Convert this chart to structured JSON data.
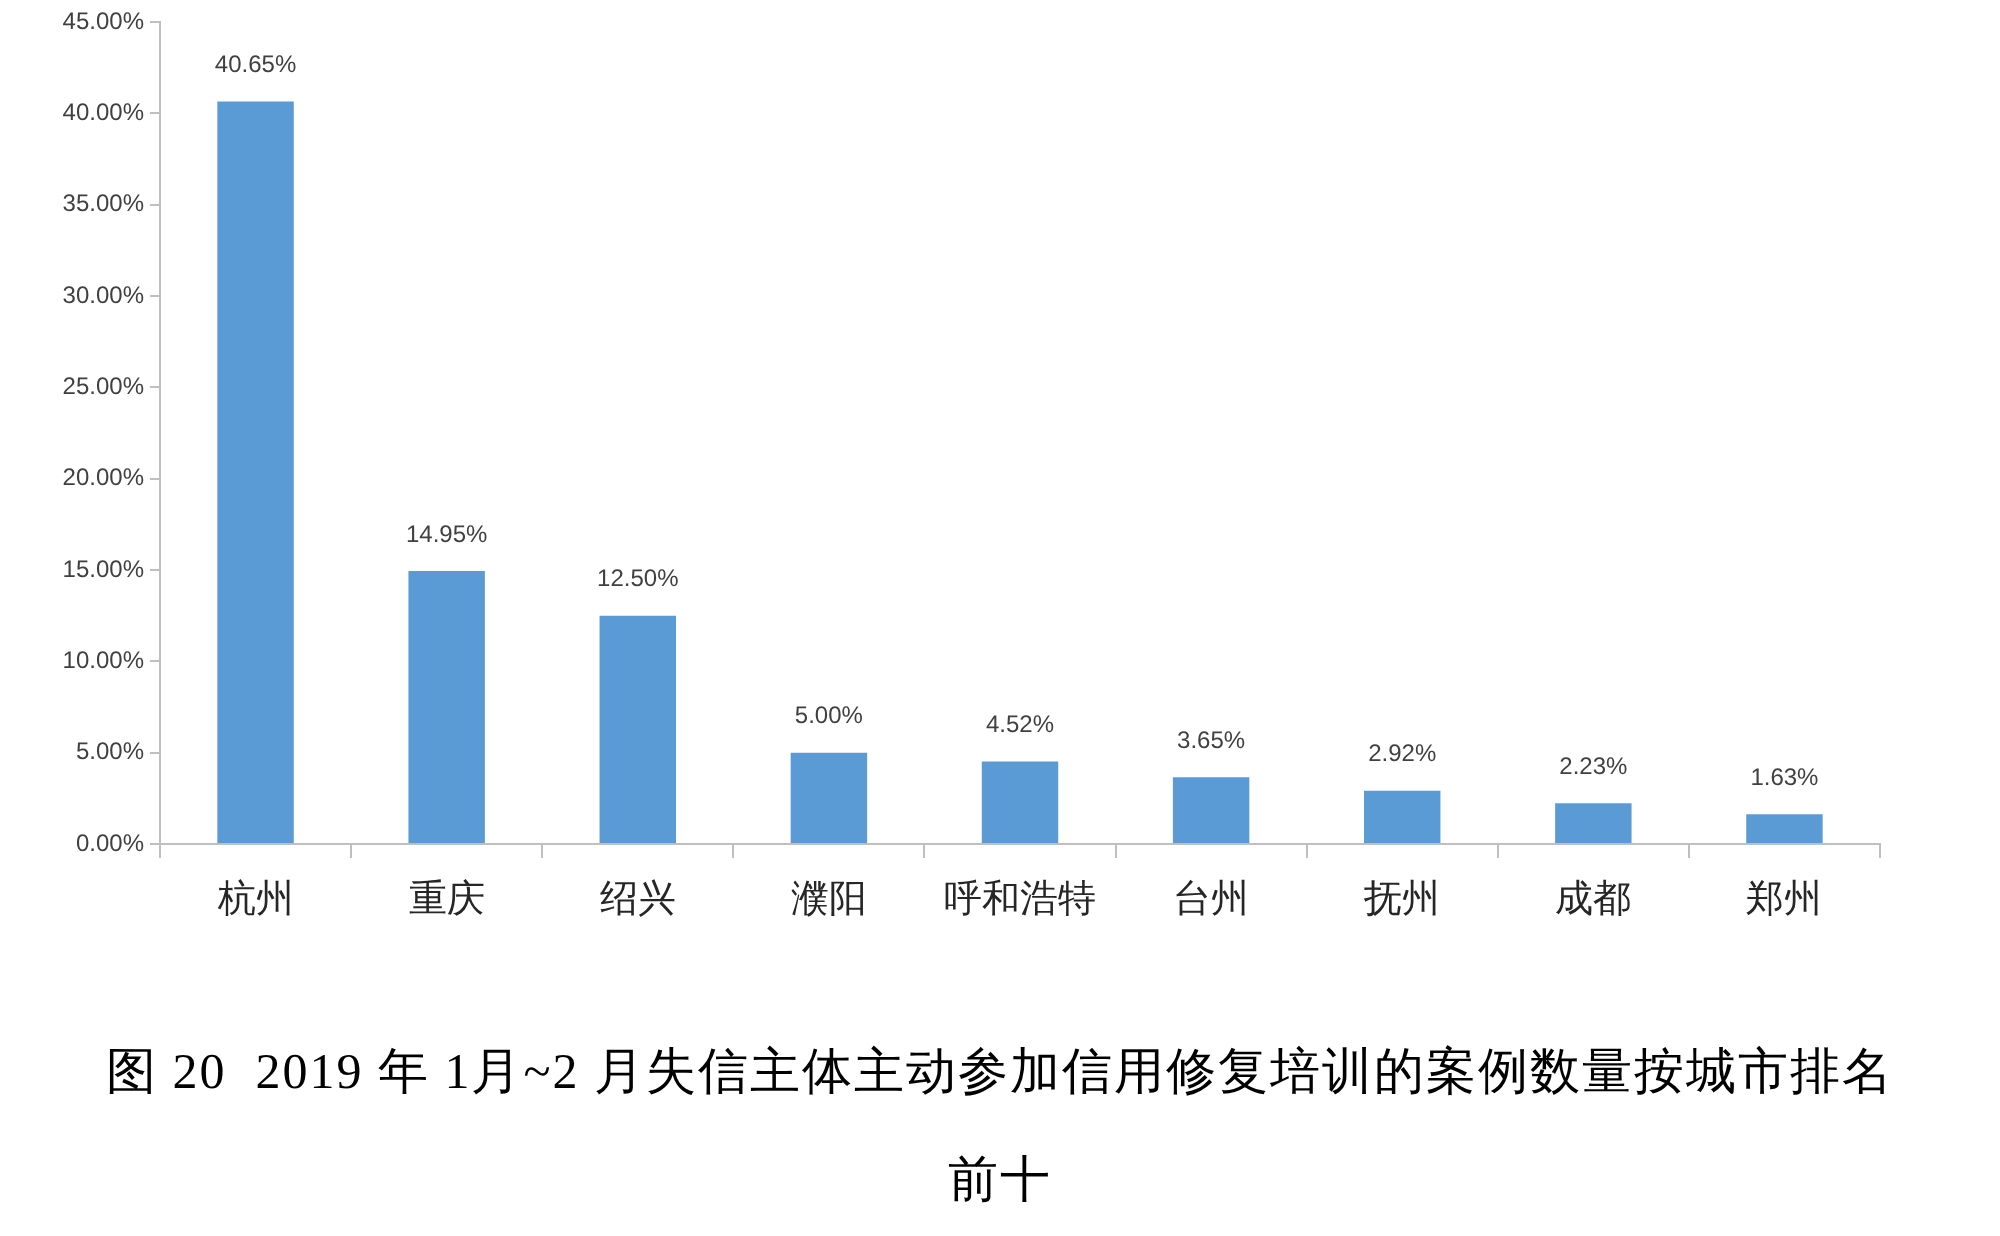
{
  "chart_data": {
    "type": "bar",
    "title": "图 20  2019 年 1月~2 月失信主体主动参加信用修复培训的案例数量按城市排名前十",
    "categories": [
      "杭州",
      "重庆",
      "绍兴",
      "濮阳",
      "呼和浩特",
      "台州",
      "抚州",
      "成都",
      "郑州"
    ],
    "values": [
      40.65,
      14.95,
      12.5,
      5.0,
      4.52,
      3.65,
      2.92,
      2.23,
      1.63
    ],
    "value_labels": [
      "40.65%",
      "14.95%",
      "12.50%",
      "5.00%",
      "4.52%",
      "3.65%",
      "2.92%",
      "2.23%",
      "1.63%"
    ],
    "color": "#5b9bd5",
    "ylim": [
      0,
      45
    ],
    "yticks": [
      {
        "value": 0,
        "label": "0.00%"
      },
      {
        "value": 5,
        "label": "5.00%"
      },
      {
        "value": 10,
        "label": "10.00%"
      },
      {
        "value": 15,
        "label": "15.00%"
      },
      {
        "value": 20,
        "label": "20.00%"
      },
      {
        "value": 25,
        "label": "25.00%"
      },
      {
        "value": 30,
        "label": "30.00%"
      },
      {
        "value": 35,
        "label": "35.00%"
      },
      {
        "value": 40,
        "label": "40.00%"
      },
      {
        "value": 45,
        "label": "45.00%"
      }
    ]
  }
}
